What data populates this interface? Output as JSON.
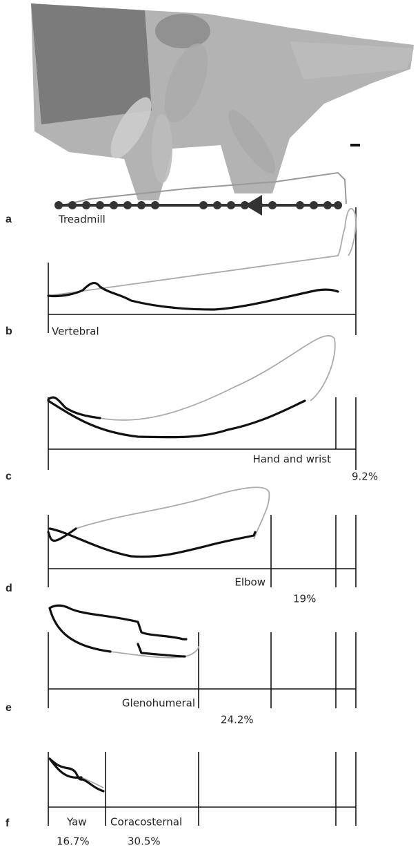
{
  "panels": [
    {
      "label": "a",
      "caption": "Treadmill"
    },
    {
      "label": "b",
      "caption": "Vertebral"
    },
    {
      "label": "c",
      "caption": "Hand and wrist",
      "percent": "9.2%"
    },
    {
      "label": "d",
      "caption": "Elbow",
      "percent": "19%"
    },
    {
      "label": "e",
      "caption": "Glenohumeral",
      "percent": "24.2%"
    },
    {
      "label": "f",
      "caption": "Yaw",
      "caption2": "Coracosternal",
      "percent": "16.7%",
      "percent2": "30.5%"
    }
  ]
}
